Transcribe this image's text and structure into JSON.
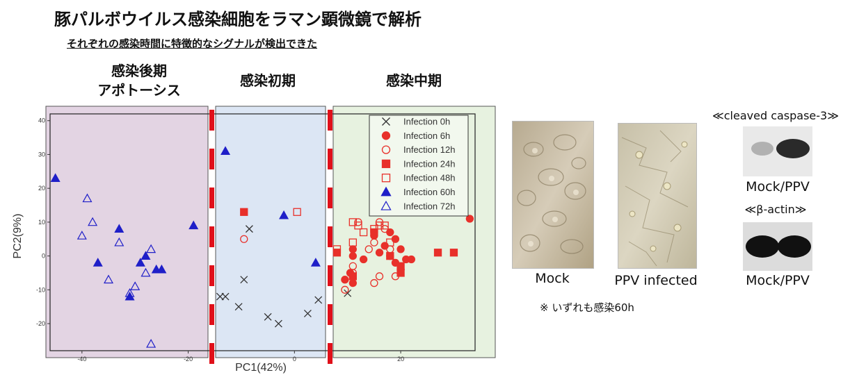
{
  "title": "豚パルボウイルス感染細胞をラマン顕微鏡で解析",
  "subtitle": "それぞれの感染時間に特徴的なシグナルが検出できた",
  "phases": {
    "late": [
      "感染後期",
      "アポトーシス"
    ],
    "early": "感染初期",
    "middle": "感染中期"
  },
  "colors": {
    "late_bg": "#e3d4e3",
    "early_bg": "#dce6f4",
    "middle_bg": "#e7f2e0",
    "red": "#e8302a",
    "blue": "#1f1fc8",
    "dash": "#e0101a"
  },
  "chart_data": {
    "type": "scatter",
    "xlabel": "PC1(42%)",
    "ylabel": "PC2(9%)",
    "xlim": [
      -46,
      34
    ],
    "ylim": [
      -28,
      42
    ],
    "xticks": [
      -40,
      -20,
      0,
      20
    ],
    "yticks": [
      40,
      30,
      20,
      10,
      0,
      -10,
      -20
    ],
    "legend_position": "top-right",
    "series": [
      {
        "name": "Infection 0h",
        "marker": "x",
        "color": "#333333",
        "points": [
          [
            -14,
            -12
          ],
          [
            -13,
            -12
          ],
          [
            -10.5,
            -15
          ],
          [
            -9.5,
            -7
          ],
          [
            -8.5,
            8
          ],
          [
            -5,
            -18
          ],
          [
            -3,
            -20
          ],
          [
            2.5,
            -17
          ],
          [
            4.5,
            -13
          ],
          [
            10,
            -11
          ]
        ]
      },
      {
        "name": "Infection 6h",
        "marker": "circle-filled",
        "color": "#e8302a",
        "points": [
          [
            9.5,
            -7
          ],
          [
            10.5,
            -5
          ],
          [
            11,
            2
          ],
          [
            11,
            0
          ],
          [
            11,
            -8
          ],
          [
            13,
            -1
          ],
          [
            15,
            6
          ],
          [
            16,
            1
          ],
          [
            17,
            3
          ],
          [
            18,
            7
          ],
          [
            18,
            0
          ],
          [
            19,
            5
          ],
          [
            19,
            -2
          ],
          [
            20,
            2
          ],
          [
            21,
            -1
          ],
          [
            22,
            -1
          ],
          [
            33,
            11
          ]
        ]
      },
      {
        "name": "Infection 12h",
        "marker": "circle-open",
        "color": "#e8302a",
        "points": [
          [
            -9.5,
            5
          ],
          [
            9.5,
            -10
          ],
          [
            11,
            -3
          ],
          [
            11,
            -5
          ],
          [
            12,
            10
          ],
          [
            14,
            2
          ],
          [
            15,
            4
          ],
          [
            15,
            -8
          ],
          [
            16,
            -6
          ],
          [
            16,
            10
          ],
          [
            17,
            8
          ],
          [
            18,
            2
          ],
          [
            19,
            -6
          ],
          [
            20,
            -4
          ]
        ]
      },
      {
        "name": "Infection 24h",
        "marker": "square-filled",
        "color": "#e8302a",
        "points": [
          [
            -9.5,
            13
          ],
          [
            8,
            1
          ],
          [
            11,
            -6
          ],
          [
            15,
            7
          ],
          [
            18,
            0
          ],
          [
            20,
            -3
          ],
          [
            20,
            -5
          ],
          [
            27,
            1
          ],
          [
            30,
            1
          ]
        ]
      },
      {
        "name": "Infection 48h",
        "marker": "square-open",
        "color": "#e8302a",
        "points": [
          [
            0.5,
            13
          ],
          [
            8,
            2
          ],
          [
            11,
            4
          ],
          [
            11,
            10
          ],
          [
            12,
            9
          ],
          [
            13,
            7
          ],
          [
            15,
            8
          ],
          [
            16,
            9
          ],
          [
            17,
            9
          ],
          [
            18,
            4
          ]
        ]
      },
      {
        "name": "Infection 60h",
        "marker": "triangle-filled",
        "color": "#1f1fc8",
        "points": [
          [
            -45,
            23
          ],
          [
            -37,
            -2
          ],
          [
            -33,
            8
          ],
          [
            -31,
            -12
          ],
          [
            -29,
            -2
          ],
          [
            -28,
            0
          ],
          [
            -26,
            -4
          ],
          [
            -25,
            -4
          ],
          [
            -19,
            9
          ],
          [
            -13,
            31
          ],
          [
            -2,
            12
          ],
          [
            4,
            -2
          ]
        ]
      },
      {
        "name": "Infection 72h",
        "marker": "triangle-open",
        "color": "#1f1fc8",
        "points": [
          [
            -39,
            17
          ],
          [
            -38,
            10
          ],
          [
            -40,
            6
          ],
          [
            -35,
            -7
          ],
          [
            -33,
            4
          ],
          [
            -31,
            -11
          ],
          [
            -30,
            -9
          ],
          [
            -28,
            -5
          ],
          [
            -27,
            2
          ],
          [
            -27,
            -26
          ]
        ]
      }
    ]
  },
  "images": {
    "mock_caption": "Mock",
    "ppv_caption": "PPV infected",
    "caspase_header": "≪cleaved caspase-3≫",
    "caspase_caption": "Mock/PPV",
    "actin_header": "≪β-actin≫",
    "actin_caption": "Mock/PPV"
  },
  "note": "※ いずれも感染60h"
}
